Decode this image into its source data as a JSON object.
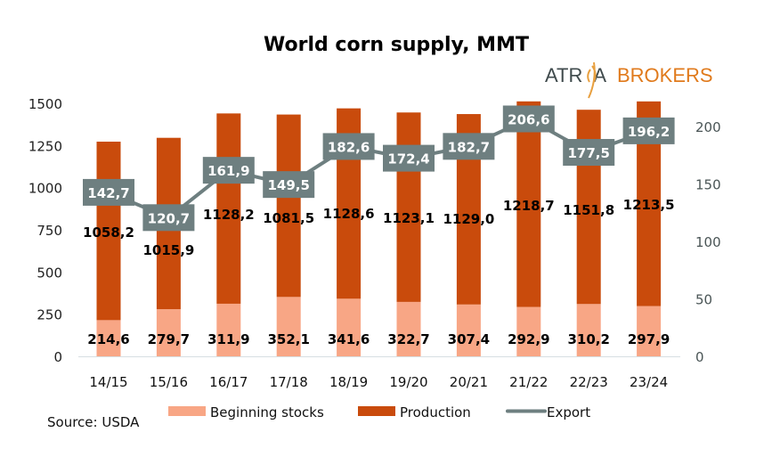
{
  "chart_data": {
    "type": "bar",
    "title": "World corn supply, MMT",
    "categories": [
      "14/15",
      "15/16",
      "16/17",
      "17/18",
      "18/19",
      "19/20",
      "20/21",
      "21/22",
      "22/23",
      "23/24"
    ],
    "series": [
      {
        "name": "Beginning stocks",
        "kind": "stacked-bar",
        "axis": "left",
        "color": "#F8A685",
        "values": [
          214.6,
          279.7,
          311.9,
          352.1,
          341.6,
          322.7,
          307.4,
          292.9,
          310.2,
          297.9
        ],
        "labels": [
          "214,6",
          "279,7",
          "311,9",
          "352,1",
          "341,6",
          "322,7",
          "307,4",
          "292,9",
          "310,2",
          "297,9"
        ]
      },
      {
        "name": "Production",
        "kind": "stacked-bar",
        "axis": "left",
        "color": "#C94B0C",
        "values": [
          1058.2,
          1015.9,
          1128.2,
          1081.5,
          1128.6,
          1123.1,
          1129.0,
          1218.7,
          1151.8,
          1213.5
        ],
        "labels": [
          "1058,2",
          "1015,9",
          "1128,2",
          "1081,5",
          "1128,6",
          "1123,1",
          "1129,0",
          "1218,7",
          "1151,8",
          "1213,5"
        ]
      },
      {
        "name": "Export",
        "kind": "line",
        "axis": "right",
        "color": "#6E7F80",
        "values": [
          142.7,
          120.7,
          161.9,
          149.5,
          182.6,
          172.4,
          182.7,
          206.6,
          177.5,
          196.2
        ],
        "labels": [
          "142,7",
          "120,7",
          "161,9",
          "149,5",
          "182,6",
          "172,4",
          "182,7",
          "206,6",
          "177,5",
          "196,2"
        ]
      }
    ],
    "y_left": {
      "ylim": [
        0,
        1500
      ],
      "ticks": [
        0,
        250,
        500,
        750,
        1000,
        1250,
        1500
      ]
    },
    "y_right": {
      "ylim": [
        0,
        200
      ],
      "ticks": [
        0,
        50,
        100,
        150,
        200
      ]
    },
    "xlabel": "",
    "ylabel": "",
    "grid": false,
    "legend": {
      "placement": "bottom",
      "entries": [
        "Beginning stocks",
        "Production",
        "Export"
      ]
    }
  },
  "source": "Source: USDA",
  "logo": {
    "part1": "ATR",
    "part2": "A",
    "part3": "BROKERS"
  }
}
